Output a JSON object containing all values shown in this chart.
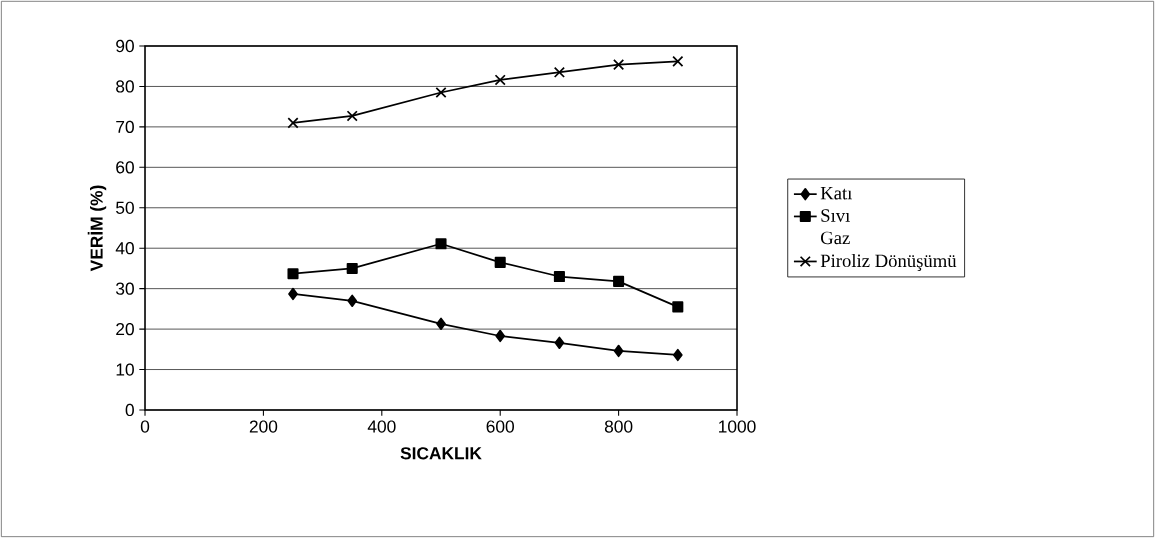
{
  "chart_data": {
    "type": "line",
    "xlabel": "SICAKLIK",
    "ylabel": "VERİM (%)",
    "x": [
      250,
      350,
      500,
      600,
      700,
      800,
      900
    ],
    "series": [
      {
        "name": "Katı",
        "color": "#000000",
        "marker": "diamond",
        "values": [
          28.7,
          27.0,
          21.3,
          18.3,
          16.6,
          14.6,
          13.6
        ]
      },
      {
        "name": "Sıvı",
        "color": "#000000",
        "marker": "square",
        "values": [
          33.7,
          35.0,
          41.1,
          36.5,
          33.0,
          31.8,
          25.5
        ]
      },
      {
        "name": "Gaz",
        "values": [
          null,
          null,
          null,
          null,
          null,
          null,
          null
        ]
      },
      {
        "name": "Piroliz Dönüşümü",
        "color": "#000000",
        "marker": "cross",
        "values": [
          71.0,
          72.7,
          78.5,
          81.6,
          83.5,
          85.4,
          86.2
        ]
      }
    ],
    "xlim": [
      0,
      1000
    ],
    "xticks": [
      0,
      200,
      400,
      600,
      800,
      1000
    ],
    "ylim": [
      0,
      90
    ],
    "yticks": [
      0,
      10,
      20,
      30,
      40,
      50,
      60,
      70,
      80,
      90
    ],
    "grid": "y",
    "legend": "right",
    "line_style": "solid"
  }
}
